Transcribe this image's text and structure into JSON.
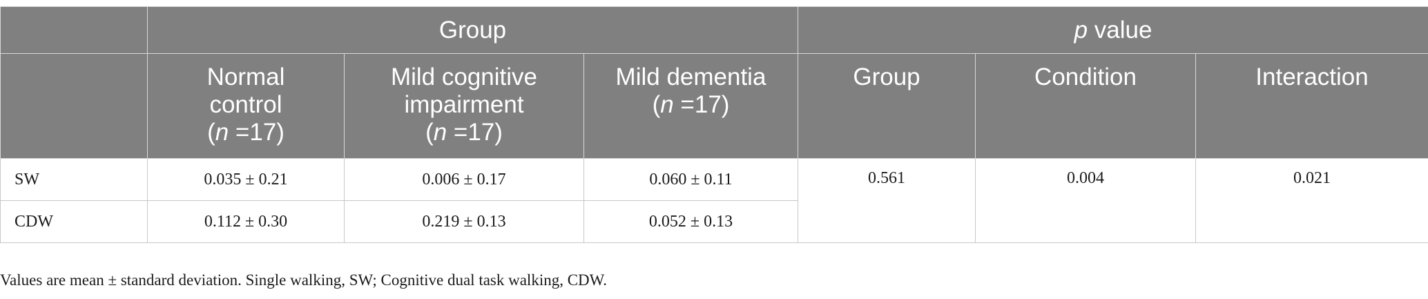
{
  "header": {
    "group_label": "Group",
    "pvalue_italic": "p",
    "pvalue_rest": " value",
    "groups": [
      {
        "line1": "Normal",
        "line2": "control",
        "n_open": "(",
        "n_italic": "n",
        "n_rest": " =17)"
      },
      {
        "line1": "Mild cognitive",
        "line2": "impairment",
        "n_open": "(",
        "n_italic": "n",
        "n_rest": " =17)"
      },
      {
        "line1": "Mild dementia",
        "line2": "",
        "n_open": "(",
        "n_italic": "n",
        "n_rest": " =17)"
      }
    ],
    "pvalue_cols": [
      "Group",
      "Condition",
      "Interaction"
    ]
  },
  "rows": [
    {
      "label": "SW",
      "values": [
        "0.035 ± 0.21",
        "0.006 ± 0.17",
        "0.060 ± 0.11"
      ]
    },
    {
      "label": "CDW",
      "values": [
        "0.112 ± 0.30",
        "0.219 ± 0.13",
        "0.052 ± 0.13"
      ]
    }
  ],
  "pvalues": [
    "0.561",
    "0.004",
    "0.021"
  ],
  "footnote": "Values are mean ± standard deviation. Single walking, SW; Cognitive dual task walking, CDW."
}
